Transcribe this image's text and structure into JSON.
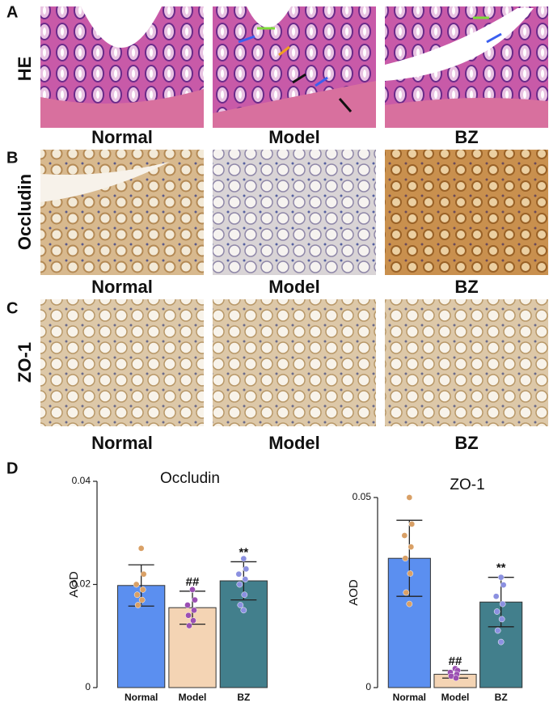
{
  "panel_labels": [
    "A",
    "B",
    "C",
    "D"
  ],
  "rows": [
    {
      "label": "HE",
      "columns": [
        "Normal",
        "Model",
        "BZ"
      ]
    },
    {
      "label": "Occludin",
      "columns": [
        "Normal",
        "Model",
        "BZ"
      ]
    },
    {
      "label": "ZO-1",
      "columns": [
        "Normal",
        "Model",
        "BZ"
      ]
    }
  ],
  "chart_data": [
    {
      "type": "bar",
      "title": "Occludin",
      "y_label": "AOD",
      "categories": [
        "Normal",
        "Model",
        "BZ"
      ],
      "values": [
        0.0198,
        0.0155,
        0.0207
      ],
      "errors": [
        0.004,
        0.0032,
        0.0037
      ],
      "points": [
        [
          0.027,
          0.022,
          0.02,
          0.019,
          0.018,
          0.017,
          0.016
        ],
        [
          0.019,
          0.017,
          0.016,
          0.015,
          0.014,
          0.013,
          0.012
        ],
        [
          0.025,
          0.023,
          0.022,
          0.021,
          0.02,
          0.018,
          0.016,
          0.015
        ]
      ],
      "value_annotations": [
        null,
        "##",
        "**"
      ],
      "colors": [
        "#5b8ff0",
        "#f4d4b4",
        "#427f8c"
      ],
      "point_colors": [
        "#d9a066",
        "#9b4fb3",
        "#8b90e0"
      ],
      "ylim": [
        0,
        0.04
      ],
      "yticks": [
        0,
        0.02,
        0.04
      ]
    },
    {
      "type": "bar",
      "title": "ZO-1",
      "y_label": "AOD",
      "categories": [
        "Normal",
        "Model",
        "BZ"
      ],
      "values": [
        0.034,
        0.0035,
        0.0225
      ],
      "errors": [
        0.01,
        0.001,
        0.0065
      ],
      "points": [
        [
          0.05,
          0.043,
          0.04,
          0.037,
          0.034,
          0.03,
          0.025,
          0.022
        ],
        [
          0.005,
          0.0045,
          0.004,
          0.0035,
          0.003,
          0.0025
        ],
        [
          0.029,
          0.027,
          0.024,
          0.022,
          0.02,
          0.018,
          0.015,
          0.012
        ]
      ],
      "value_annotations": [
        null,
        "##",
        "**"
      ],
      "colors": [
        "#5b8ff0",
        "#f4d4b4",
        "#427f8c"
      ],
      "point_colors": [
        "#d9a066",
        "#9b4fb3",
        "#8b90e0"
      ],
      "ylim": [
        0,
        0.05
      ],
      "yticks": [
        0,
        0.05
      ]
    }
  ]
}
